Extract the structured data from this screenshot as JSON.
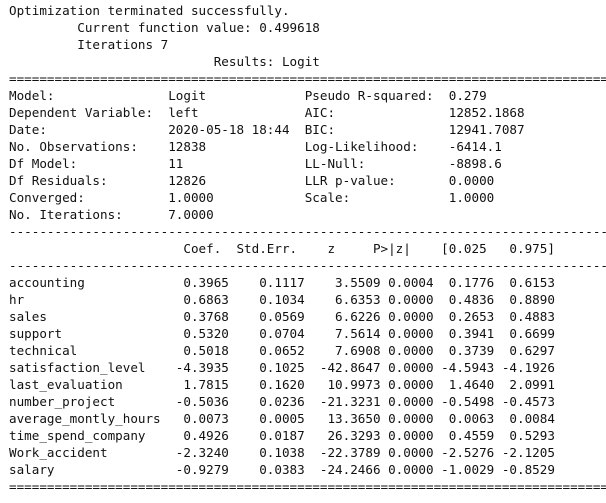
{
  "header": {
    "status": "Optimization terminated successfully.",
    "function_value": "         Current function value: 0.499618",
    "iterations": "         Iterations 7",
    "results_title": "                           Results: Logit"
  },
  "rules": {
    "double": "=================================================================================",
    "single": "---------------------------------------------------------------------------------"
  },
  "summary_lines": [
    "Model:               Logit             Pseudo R-squared:  0.279",
    "Dependent Variable:  left              AIC:               12852.1868",
    "Date:                2020-05-18 18:44  BIC:               12941.7087",
    "No. Observations:    12838             Log-Likelihood:    -6414.1",
    "Df Model:            11                LL-Null:           -8898.6",
    "Df Residuals:        12826             LLR p-value:       0.0000",
    "Converged:           1.0000            Scale:             1.0000",
    "No. Iterations:      7.0000"
  ],
  "coef_header": "                       Coef.  Std.Err.    z     P>|z|    [0.025   0.975]",
  "coef_rows": [
    "accounting             0.3965    0.1117    3.5509 0.0004  0.1776  0.6153",
    "hr                     0.6863    0.1034    6.6353 0.0000  0.4836  0.8890",
    "sales                  0.3768    0.0569    6.6226 0.0000  0.2653  0.4883",
    "support                0.5320    0.0704    7.5614 0.0000  0.3941  0.6699",
    "technical              0.5018    0.0652    7.6908 0.0000  0.3739  0.6297",
    "satisfaction_level    -4.3935    0.1025  -42.8647 0.0000 -4.5943 -4.1926",
    "last_evaluation        1.7815    0.1620   10.9973 0.0000  1.4640  2.0991",
    "number_project        -0.5036    0.0236  -21.3231 0.0000 -0.5498 -0.4573",
    "average_montly_hours   0.0073    0.0005   13.3650 0.0000  0.0063  0.0084",
    "time_spend_company     0.4926    0.0187   26.3293 0.0000  0.4559  0.5293",
    "Work_accident         -2.3240    0.1038  -22.3789 0.0000 -2.5276 -2.1205",
    "salary                -0.9279    0.0383  -24.2466 0.0000 -1.0029 -0.8529"
  ]
}
